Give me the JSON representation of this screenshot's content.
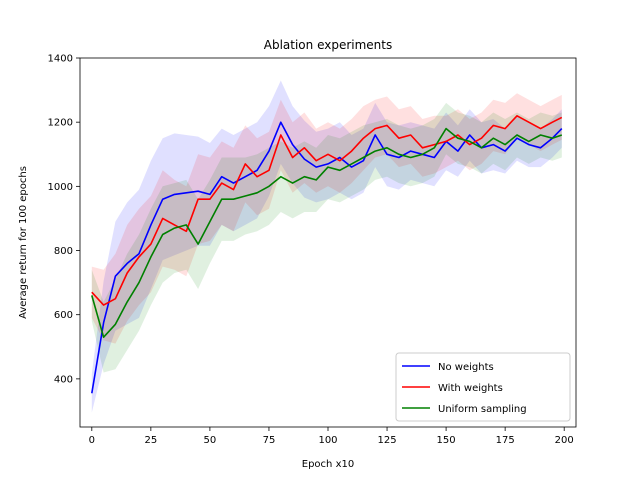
{
  "chart_data": {
    "type": "line",
    "title": "Ablation experiments",
    "xlabel": "Epoch x10",
    "ylabel": "Average return for 100 epochs",
    "xlim": [
      -5,
      205
    ],
    "ylim": [
      250,
      1400
    ],
    "xticks": [
      0,
      25,
      50,
      75,
      100,
      125,
      150,
      175,
      200
    ],
    "yticks": [
      400,
      600,
      800,
      1000,
      1200,
      1400
    ],
    "legend_position": "lower-right",
    "grid": false,
    "band": "shaded spread around each series",
    "series": [
      {
        "name": "No weights",
        "color": "#0000ff",
        "x": [
          0,
          5,
          10,
          15,
          20,
          25,
          30,
          35,
          40,
          45,
          50,
          55,
          60,
          65,
          70,
          75,
          80,
          85,
          90,
          95,
          100,
          105,
          110,
          115,
          120,
          125,
          130,
          135,
          140,
          145,
          150,
          155,
          160,
          165,
          170,
          175,
          180,
          185,
          190,
          195,
          199
        ],
        "y": [
          355,
          575,
          720,
          760,
          790,
          880,
          960,
          975,
          980,
          985,
          975,
          1030,
          1010,
          1030,
          1050,
          1110,
          1200,
          1130,
          1085,
          1060,
          1070,
          1090,
          1060,
          1080,
          1160,
          1100,
          1090,
          1110,
          1100,
          1090,
          1140,
          1110,
          1160,
          1120,
          1130,
          1110,
          1150,
          1130,
          1120,
          1150,
          1180
        ],
        "band": [
          60,
          130,
          170,
          190,
          200,
          200,
          190,
          190,
          180,
          170,
          160,
          150,
          150,
          150,
          150,
          140,
          130,
          120,
          120,
          110,
          110,
          110,
          100,
          100,
          100,
          100,
          100,
          90,
          90,
          90,
          90,
          80,
          80,
          80,
          80,
          70,
          70,
          70,
          60,
          60,
          60
        ]
      },
      {
        "name": "With weights",
        "color": "#ff0000",
        "x": [
          0,
          5,
          10,
          15,
          20,
          25,
          30,
          35,
          40,
          45,
          50,
          55,
          60,
          65,
          70,
          75,
          80,
          85,
          90,
          95,
          100,
          105,
          110,
          115,
          120,
          125,
          130,
          135,
          140,
          145,
          150,
          155,
          160,
          165,
          170,
          175,
          180,
          185,
          190,
          195,
          199
        ],
        "y": [
          670,
          630,
          650,
          730,
          780,
          820,
          900,
          880,
          860,
          960,
          960,
          1010,
          990,
          1070,
          1030,
          1050,
          1160,
          1090,
          1120,
          1080,
          1100,
          1080,
          1110,
          1150,
          1180,
          1190,
          1150,
          1160,
          1120,
          1130,
          1140,
          1160,
          1130,
          1150,
          1190,
          1180,
          1220,
          1200,
          1180,
          1200,
          1215
        ]
      },
      {
        "name": "Uniform sampling",
        "color": "#008000",
        "x": [
          0,
          5,
          10,
          15,
          20,
          25,
          30,
          35,
          40,
          45,
          50,
          55,
          60,
          65,
          70,
          75,
          80,
          85,
          90,
          95,
          100,
          105,
          110,
          115,
          120,
          125,
          130,
          135,
          140,
          145,
          150,
          155,
          160,
          165,
          170,
          175,
          180,
          185,
          190,
          195,
          199
        ],
        "y": [
          660,
          530,
          570,
          640,
          700,
          780,
          850,
          870,
          880,
          820,
          890,
          960,
          960,
          970,
          980,
          1000,
          1030,
          1010,
          1030,
          1020,
          1060,
          1050,
          1070,
          1090,
          1110,
          1120,
          1100,
          1090,
          1100,
          1120,
          1180,
          1150,
          1140,
          1120,
          1150,
          1130,
          1160,
          1140,
          1160,
          1150,
          1160
        ]
      }
    ]
  }
}
